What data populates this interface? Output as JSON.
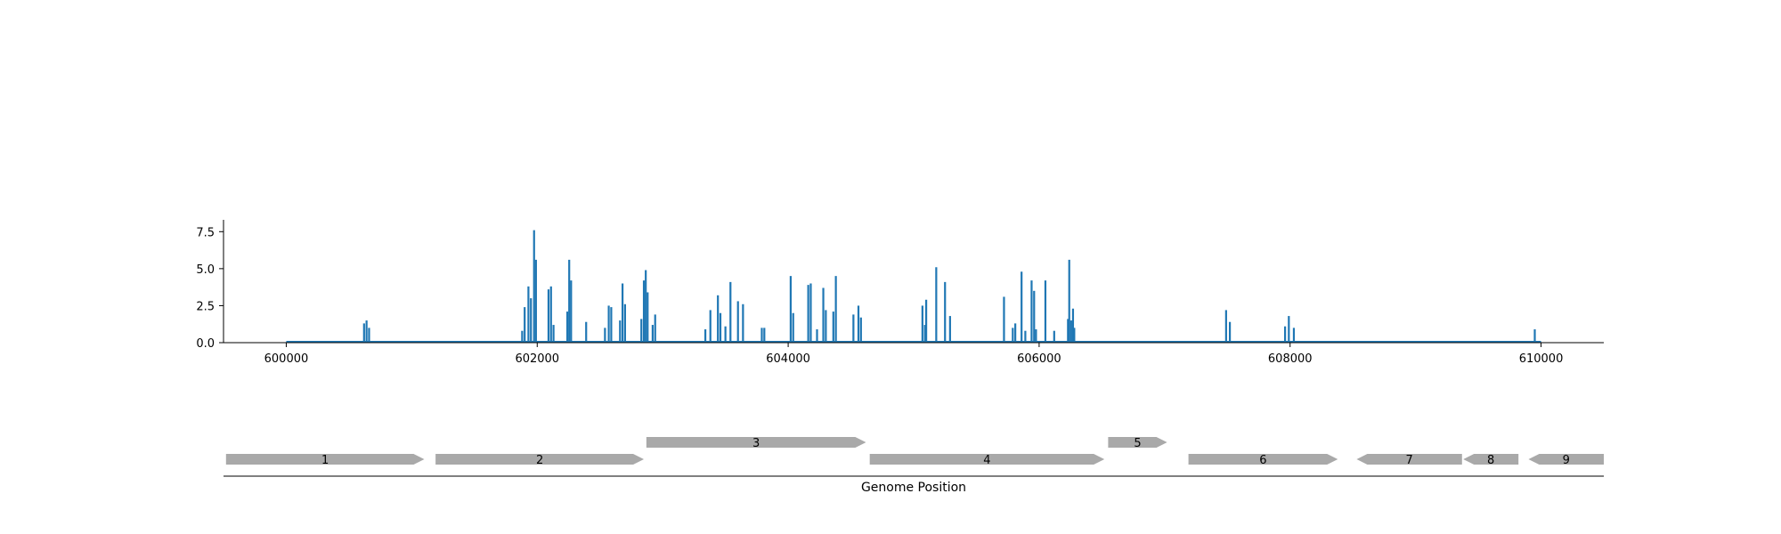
{
  "colors": {
    "signal": "#1f77b4",
    "gene": "#a9a9a9",
    "axis": "#000000"
  },
  "chart_data": [
    {
      "type": "area",
      "xlim": [
        599500,
        610500
      ],
      "ylim": [
        0,
        8.3
      ],
      "yticks": [
        0.0,
        2.5,
        5.0,
        7.5
      ],
      "ytick_labels": [
        "0.0",
        "2.5",
        "5.0",
        "7.5"
      ],
      "xticks": [
        600000,
        602000,
        604000,
        606000,
        608000,
        610000
      ],
      "xtick_labels": [
        "600000",
        "602000",
        "604000",
        "606000",
        "608000",
        "610000"
      ],
      "baseline_range": [
        600000,
        610000
      ],
      "peaks": [
        {
          "x": 600620,
          "y": 1.3
        },
        {
          "x": 600640,
          "y": 1.5
        },
        {
          "x": 600660,
          "y": 1.0
        },
        {
          "x": 601880,
          "y": 0.8
        },
        {
          "x": 601900,
          "y": 2.4
        },
        {
          "x": 601930,
          "y": 3.8
        },
        {
          "x": 601950,
          "y": 3.0
        },
        {
          "x": 601975,
          "y": 7.6
        },
        {
          "x": 601990,
          "y": 5.6
        },
        {
          "x": 602090,
          "y": 3.6
        },
        {
          "x": 602110,
          "y": 3.8
        },
        {
          "x": 602130,
          "y": 1.2
        },
        {
          "x": 602240,
          "y": 2.1
        },
        {
          "x": 602255,
          "y": 5.6
        },
        {
          "x": 602270,
          "y": 4.2
        },
        {
          "x": 602390,
          "y": 1.4
        },
        {
          "x": 602540,
          "y": 1.0
        },
        {
          "x": 602570,
          "y": 2.5
        },
        {
          "x": 602590,
          "y": 2.4
        },
        {
          "x": 602660,
          "y": 1.5
        },
        {
          "x": 602680,
          "y": 4.0
        },
        {
          "x": 602700,
          "y": 2.6
        },
        {
          "x": 602830,
          "y": 1.6
        },
        {
          "x": 602850,
          "y": 4.2
        },
        {
          "x": 602865,
          "y": 4.9
        },
        {
          "x": 602880,
          "y": 3.4
        },
        {
          "x": 602920,
          "y": 1.2
        },
        {
          "x": 602940,
          "y": 1.9
        },
        {
          "x": 603340,
          "y": 0.9
        },
        {
          "x": 603380,
          "y": 2.2
        },
        {
          "x": 603440,
          "y": 3.2
        },
        {
          "x": 603460,
          "y": 2.0
        },
        {
          "x": 603500,
          "y": 1.1
        },
        {
          "x": 603540,
          "y": 4.1
        },
        {
          "x": 603600,
          "y": 2.8
        },
        {
          "x": 603640,
          "y": 2.6
        },
        {
          "x": 603790,
          "y": 1.0
        },
        {
          "x": 603810,
          "y": 1.0
        },
        {
          "x": 604020,
          "y": 4.5
        },
        {
          "x": 604040,
          "y": 2.0
        },
        {
          "x": 604160,
          "y": 3.9
        },
        {
          "x": 604180,
          "y": 4.0
        },
        {
          "x": 604230,
          "y": 0.9
        },
        {
          "x": 604280,
          "y": 3.7
        },
        {
          "x": 604300,
          "y": 2.2
        },
        {
          "x": 604360,
          "y": 2.1
        },
        {
          "x": 604380,
          "y": 4.5
        },
        {
          "x": 604520,
          "y": 1.9
        },
        {
          "x": 604560,
          "y": 2.5
        },
        {
          "x": 604580,
          "y": 1.7
        },
        {
          "x": 605070,
          "y": 2.5
        },
        {
          "x": 605090,
          "y": 1.2
        },
        {
          "x": 605100,
          "y": 2.9
        },
        {
          "x": 605180,
          "y": 5.1
        },
        {
          "x": 605250,
          "y": 4.1
        },
        {
          "x": 605290,
          "y": 1.8
        },
        {
          "x": 605720,
          "y": 3.1
        },
        {
          "x": 605790,
          "y": 1.0
        },
        {
          "x": 605810,
          "y": 1.3
        },
        {
          "x": 605860,
          "y": 4.8
        },
        {
          "x": 605890,
          "y": 0.8
        },
        {
          "x": 605940,
          "y": 4.2
        },
        {
          "x": 605960,
          "y": 3.5
        },
        {
          "x": 605975,
          "y": 0.9
        },
        {
          "x": 606050,
          "y": 4.2
        },
        {
          "x": 606120,
          "y": 0.8
        },
        {
          "x": 606230,
          "y": 1.6
        },
        {
          "x": 606240,
          "y": 5.6
        },
        {
          "x": 606255,
          "y": 1.5
        },
        {
          "x": 606270,
          "y": 2.3
        },
        {
          "x": 606280,
          "y": 1.0
        },
        {
          "x": 607490,
          "y": 2.2
        },
        {
          "x": 607520,
          "y": 1.4
        },
        {
          "x": 607960,
          "y": 1.1
        },
        {
          "x": 607990,
          "y": 1.8
        },
        {
          "x": 608030,
          "y": 1.0
        },
        {
          "x": 609950,
          "y": 0.9
        }
      ]
    },
    {
      "type": "gene-track",
      "xlabel": "Genome Position",
      "genes": [
        {
          "label": "1",
          "start": 599520,
          "end": 601100,
          "strand": "+",
          "row": 0
        },
        {
          "label": "2",
          "start": 601190,
          "end": 602850,
          "strand": "+",
          "row": 0
        },
        {
          "label": "3",
          "start": 602870,
          "end": 604620,
          "strand": "+",
          "row": 1
        },
        {
          "label": "4",
          "start": 604650,
          "end": 606520,
          "strand": "+",
          "row": 0
        },
        {
          "label": "5",
          "start": 606550,
          "end": 607020,
          "strand": "+",
          "row": 1
        },
        {
          "label": "6",
          "start": 607190,
          "end": 608380,
          "strand": "+",
          "row": 0
        },
        {
          "label": "7",
          "start": 608530,
          "end": 609370,
          "strand": "-",
          "row": 0
        },
        {
          "label": "8",
          "start": 609380,
          "end": 609820,
          "strand": "-",
          "row": 0
        },
        {
          "label": "9",
          "start": 609900,
          "end": 610500,
          "strand": "-",
          "row": 0
        }
      ]
    }
  ]
}
